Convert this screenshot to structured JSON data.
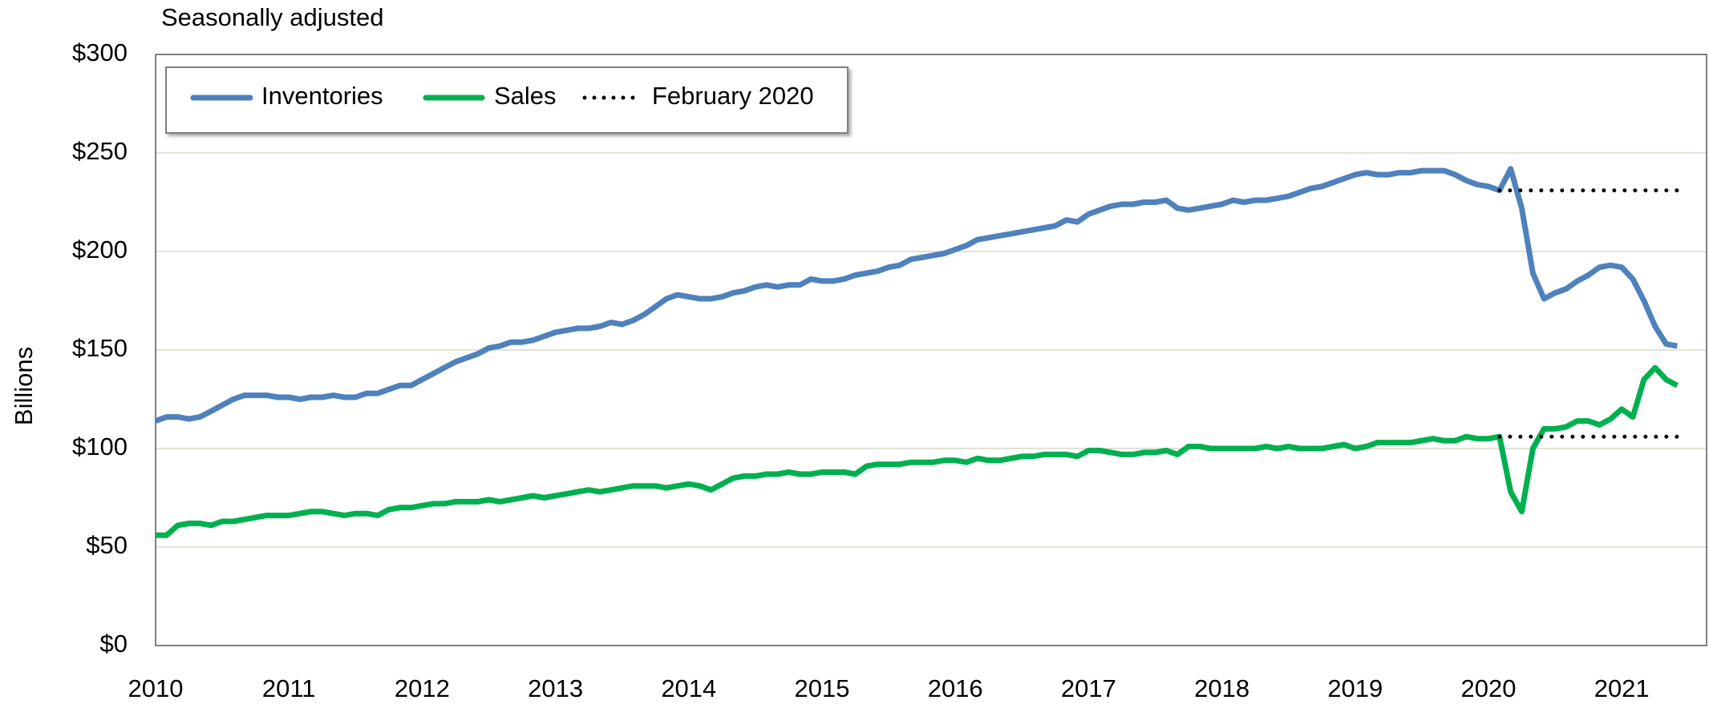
{
  "chart_data": {
    "type": "line",
    "subtitle": "Seasonally adjusted",
    "y_label": "Billions",
    "categories": [
      "2010",
      null,
      null,
      null,
      null,
      null,
      null,
      null,
      null,
      null,
      null,
      null,
      "2011",
      null,
      null,
      null,
      null,
      null,
      null,
      null,
      null,
      null,
      null,
      null,
      "2012",
      null,
      null,
      null,
      null,
      null,
      null,
      null,
      null,
      null,
      null,
      null,
      "2013",
      null,
      null,
      null,
      null,
      null,
      null,
      null,
      null,
      null,
      null,
      null,
      "2014",
      null,
      null,
      null,
      null,
      null,
      null,
      null,
      null,
      null,
      null,
      null,
      "2015",
      null,
      null,
      null,
      null,
      null,
      null,
      null,
      null,
      null,
      null,
      null,
      "2016",
      null,
      null,
      null,
      null,
      null,
      null,
      null,
      null,
      null,
      null,
      null,
      "2017",
      null,
      null,
      null,
      null,
      null,
      null,
      null,
      null,
      null,
      null,
      null,
      "2018",
      null,
      null,
      null,
      null,
      null,
      null,
      null,
      null,
      null,
      null,
      null,
      "2019",
      null,
      null,
      null,
      null,
      null,
      null,
      null,
      null,
      null,
      null,
      null,
      "2020",
      null,
      null,
      null,
      null,
      null,
      null,
      null,
      null,
      null,
      null,
      null,
      "2021",
      null,
      null,
      null,
      null,
      null
    ],
    "series": [
      {
        "name": "Inventories",
        "color": "#4f81bd",
        "values": [
          114,
          116,
          116,
          115,
          116,
          119,
          122,
          125,
          127,
          127,
          127,
          126,
          126,
          125,
          126,
          126,
          127,
          126,
          126,
          128,
          128,
          130,
          132,
          132,
          135,
          138,
          141,
          144,
          146,
          148,
          151,
          152,
          154,
          154,
          155,
          157,
          159,
          160,
          161,
          161,
          162,
          164,
          163,
          165,
          168,
          172,
          176,
          178,
          177,
          176,
          176,
          177,
          179,
          180,
          182,
          183,
          182,
          183,
          183,
          186,
          185,
          185,
          186,
          188,
          189,
          190,
          192,
          193,
          196,
          197,
          198,
          199,
          201,
          203,
          206,
          207,
          208,
          209,
          210,
          211,
          212,
          213,
          216,
          215,
          219,
          221,
          223,
          224,
          224,
          225,
          225,
          226,
          222,
          221,
          222,
          223,
          224,
          226,
          225,
          226,
          226,
          227,
          228,
          230,
          232,
          233,
          235,
          237,
          239,
          240,
          239,
          239,
          240,
          240,
          241,
          241,
          241,
          239,
          236,
          234,
          233,
          231,
          242,
          222,
          189,
          176,
          179,
          181,
          185,
          188,
          192,
          193,
          192,
          186,
          175,
          162,
          153,
          152
        ]
      },
      {
        "name": "Sales",
        "color": "#00b050",
        "values": [
          56,
          56,
          61,
          62,
          62,
          61,
          63,
          63,
          64,
          65,
          66,
          66,
          66,
          67,
          68,
          68,
          67,
          66,
          67,
          67,
          66,
          69,
          70,
          70,
          71,
          72,
          72,
          73,
          73,
          73,
          74,
          73,
          74,
          75,
          76,
          75,
          76,
          77,
          78,
          79,
          78,
          79,
          80,
          81,
          81,
          81,
          80,
          81,
          82,
          81,
          79,
          82,
          85,
          86,
          86,
          87,
          87,
          88,
          87,
          87,
          88,
          88,
          88,
          87,
          91,
          92,
          92,
          92,
          93,
          93,
          93,
          94,
          94,
          93,
          95,
          94,
          94,
          95,
          96,
          96,
          97,
          97,
          97,
          96,
          99,
          99,
          98,
          97,
          97,
          98,
          98,
          99,
          97,
          101,
          101,
          100,
          100,
          100,
          100,
          100,
          101,
          100,
          101,
          100,
          100,
          100,
          101,
          102,
          100,
          101,
          103,
          103,
          103,
          103,
          104,
          105,
          104,
          104,
          106,
          105,
          105,
          106,
          78,
          68,
          100,
          110,
          110,
          111,
          114,
          114,
          112,
          115,
          120,
          116,
          135,
          141,
          135,
          132
        ]
      }
    ],
    "reference": {
      "name": "February 2020",
      "color": "#000000",
      "start": 121,
      "values": [
        231,
        106
      ]
    },
    "ylim": [
      0,
      300
    ],
    "yticks": [
      {
        "value": 0,
        "label": "$0"
      },
      {
        "value": 50,
        "label": "$50"
      },
      {
        "value": 100,
        "label": "$100"
      },
      {
        "value": 150,
        "label": "$150"
      },
      {
        "value": 200,
        "label": "$200"
      },
      {
        "value": 250,
        "label": "$250"
      },
      {
        "value": 300,
        "label": "$300"
      }
    ],
    "grid": true
  }
}
